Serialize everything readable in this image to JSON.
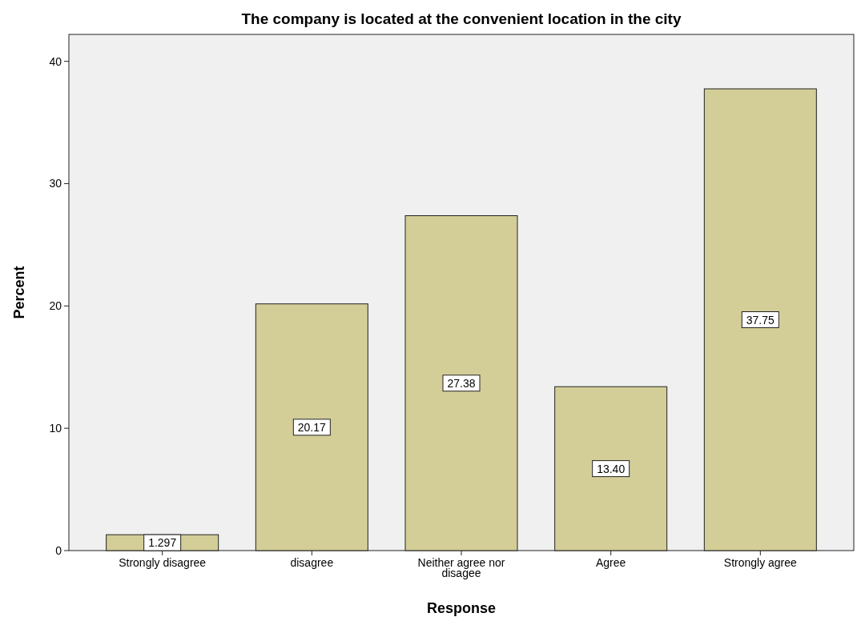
{
  "chart_data": {
    "type": "bar",
    "title": "The company is located at the convenient location in the city",
    "xlabel": "Response",
    "ylabel": "Percent",
    "categories": [
      "Strongly disagree",
      "disagree",
      "Neither agree nor disagee",
      "Agree",
      "Strongly agree"
    ],
    "values": [
      1.297,
      20.17,
      27.38,
      13.4,
      37.75
    ],
    "value_labels": [
      "1.297",
      "20.17",
      "27.38",
      "13.40",
      "37.75"
    ],
    "color": "#d3ce97",
    "ylim": [
      0,
      42.2
    ],
    "yticks": [
      0,
      10,
      20,
      30,
      40
    ],
    "grid": false
  }
}
